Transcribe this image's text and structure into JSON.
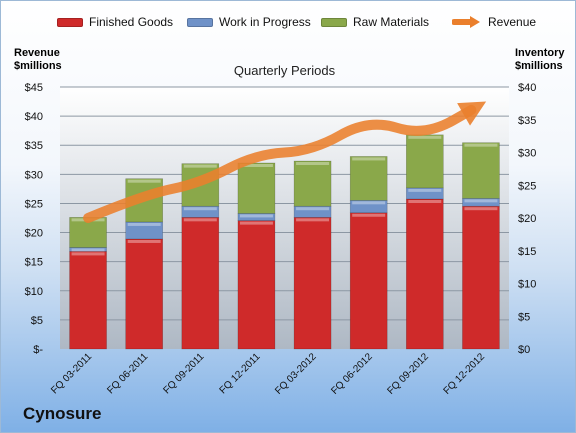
{
  "company": "Cynosure",
  "chart_data": {
    "type": "bar",
    "title": "Quarterly Periods",
    "categories": [
      "FQ 03-2011",
      "FQ 06-2011",
      "FQ 09-2011",
      "FQ 12-2011",
      "FQ 03-2012",
      "FQ 06-2012",
      "FQ 09-2012",
      "FQ 12-2012"
    ],
    "stacked": true,
    "series": [
      {
        "name": "Finished Goods",
        "axis": "right",
        "color": "#cf2a2a",
        "values": [
          14.9,
          16.8,
          20.1,
          19.6,
          20.1,
          20.8,
          22.9,
          21.8
        ]
      },
      {
        "name": "Work in Progress",
        "axis": "right",
        "color": "#6f92c8",
        "values": [
          0.6,
          2.6,
          1.7,
          1.1,
          1.7,
          1.9,
          1.7,
          1.2
        ]
      },
      {
        "name": "Raw Materials",
        "axis": "right",
        "color": "#8aa84a",
        "values": [
          4.6,
          6.6,
          6.5,
          7.7,
          6.9,
          6.7,
          8.1,
          8.5
        ]
      },
      {
        "name": "Revenue",
        "type": "line",
        "axis": "left",
        "color": "#ea7f2c",
        "values": [
          22.5,
          26.5,
          28.5,
          33.5,
          34.0,
          39.5,
          36.5,
          42.0
        ]
      }
    ],
    "left_axis": {
      "label_line1": "Revenue",
      "label_line2": "$millions",
      "min": 0,
      "max": 45,
      "ticks": [
        "$-",
        "$5",
        "$10",
        "$15",
        "$20",
        "$25",
        "$30",
        "$35",
        "$40",
        "$45"
      ]
    },
    "right_axis": {
      "label_line1": "Inventory",
      "label_line2": "$millions",
      "min": 0,
      "max": 40,
      "ticks": [
        "$0",
        "$5",
        "$10",
        "$15",
        "$20",
        "$25",
        "$30",
        "$35",
        "$40"
      ]
    },
    "grid": true,
    "legend_position": "top"
  }
}
